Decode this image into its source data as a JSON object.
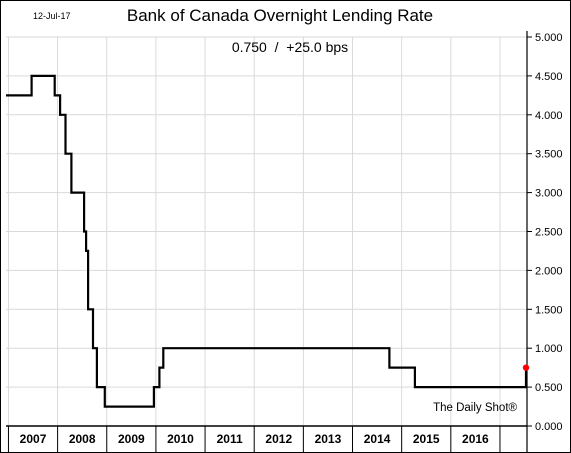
{
  "date_stamp": "12-Jul-17",
  "title": "Bank of Canada Overnight Lending Rate",
  "subtitle": "0.750  /  +25.0 bps",
  "watermark": "The Daily Shot®",
  "colors": {
    "line": "#000000",
    "last_point": "#ff0000",
    "grid": "#d9d9d9",
    "frame": "#000000"
  },
  "chart_data": {
    "type": "line",
    "step": true,
    "title": "Bank of Canada Overnight Lending Rate",
    "ylim": [
      0,
      5
    ],
    "xlim": [
      2006.95,
      2017.55
    ],
    "y_axis_side": "right",
    "grid": true,
    "y_ticks": [
      "0.000",
      "0.500",
      "1.000",
      "1.500",
      "2.000",
      "2.500",
      "3.000",
      "3.500",
      "4.000",
      "4.500",
      "5.000"
    ],
    "x_labels": [
      "2007",
      "2008",
      "2009",
      "2010",
      "2011",
      "2012",
      "2013",
      "2014",
      "2015",
      "2016"
    ],
    "series": [
      {
        "x": [
          2006.95,
          2007.47,
          2007.94,
          2008.05,
          2008.16,
          2008.28,
          2008.54,
          2008.58,
          2008.62,
          2008.72,
          2008.8,
          2008.96,
          2009.08,
          2009.96,
          2010.07,
          2010.15,
          2010.26,
          2014.75,
          2015.27,
          2017.53
        ],
        "y": [
          4.25,
          4.5,
          4.25,
          4.0,
          3.5,
          3.0,
          2.5,
          2.25,
          1.5,
          1.0,
          0.5,
          0.25,
          0.25,
          0.5,
          0.75,
          1.0,
          1.0,
          0.75,
          0.5,
          0.75
        ]
      }
    ],
    "last_value": 0.75
  }
}
